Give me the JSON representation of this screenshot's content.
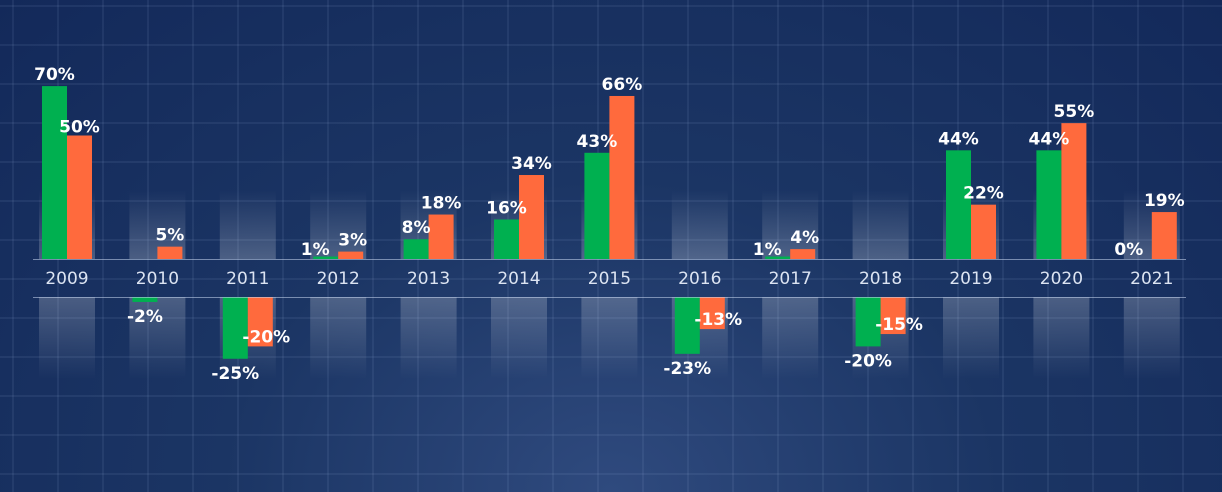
{
  "chart_data": {
    "type": "bar",
    "categories": [
      "2009",
      "2010",
      "2011",
      "2012",
      "2013",
      "2014",
      "2015",
      "2016",
      "2017",
      "2018",
      "2019",
      "2020",
      "2021"
    ],
    "series": [
      {
        "values": [
          70,
          -2,
          -25,
          1,
          8,
          16,
          43,
          -23,
          1,
          -20,
          44,
          44,
          0
        ],
        "color": "#00b050"
      },
      {
        "values": [
          50,
          5,
          -20,
          3,
          18,
          34,
          66,
          -13,
          4,
          -15,
          22,
          55,
          19
        ],
        "color": "#ff6a3d"
      }
    ],
    "value_labels": [
      [
        "70%",
        "-2%",
        "-25%",
        "1%",
        "8%",
        "16%",
        "43%",
        "-23%",
        "1%",
        "-20%",
        "44%",
        "44%",
        "0%"
      ],
      [
        "50%",
        "5%",
        "-20%",
        "3%",
        "18%",
        "34%",
        "66%",
        "-13%",
        "4%",
        "-15%",
        "22%",
        "55%",
        "19%"
      ]
    ],
    "title": "",
    "xlabel": "",
    "ylabel": "",
    "grid": true,
    "legend": "none"
  },
  "colors": {
    "background": "#13295a",
    "grid": "rgba(170,195,235,0.17)",
    "axis": "rgba(200,215,240,0.55)",
    "text": "#ffffff"
  }
}
